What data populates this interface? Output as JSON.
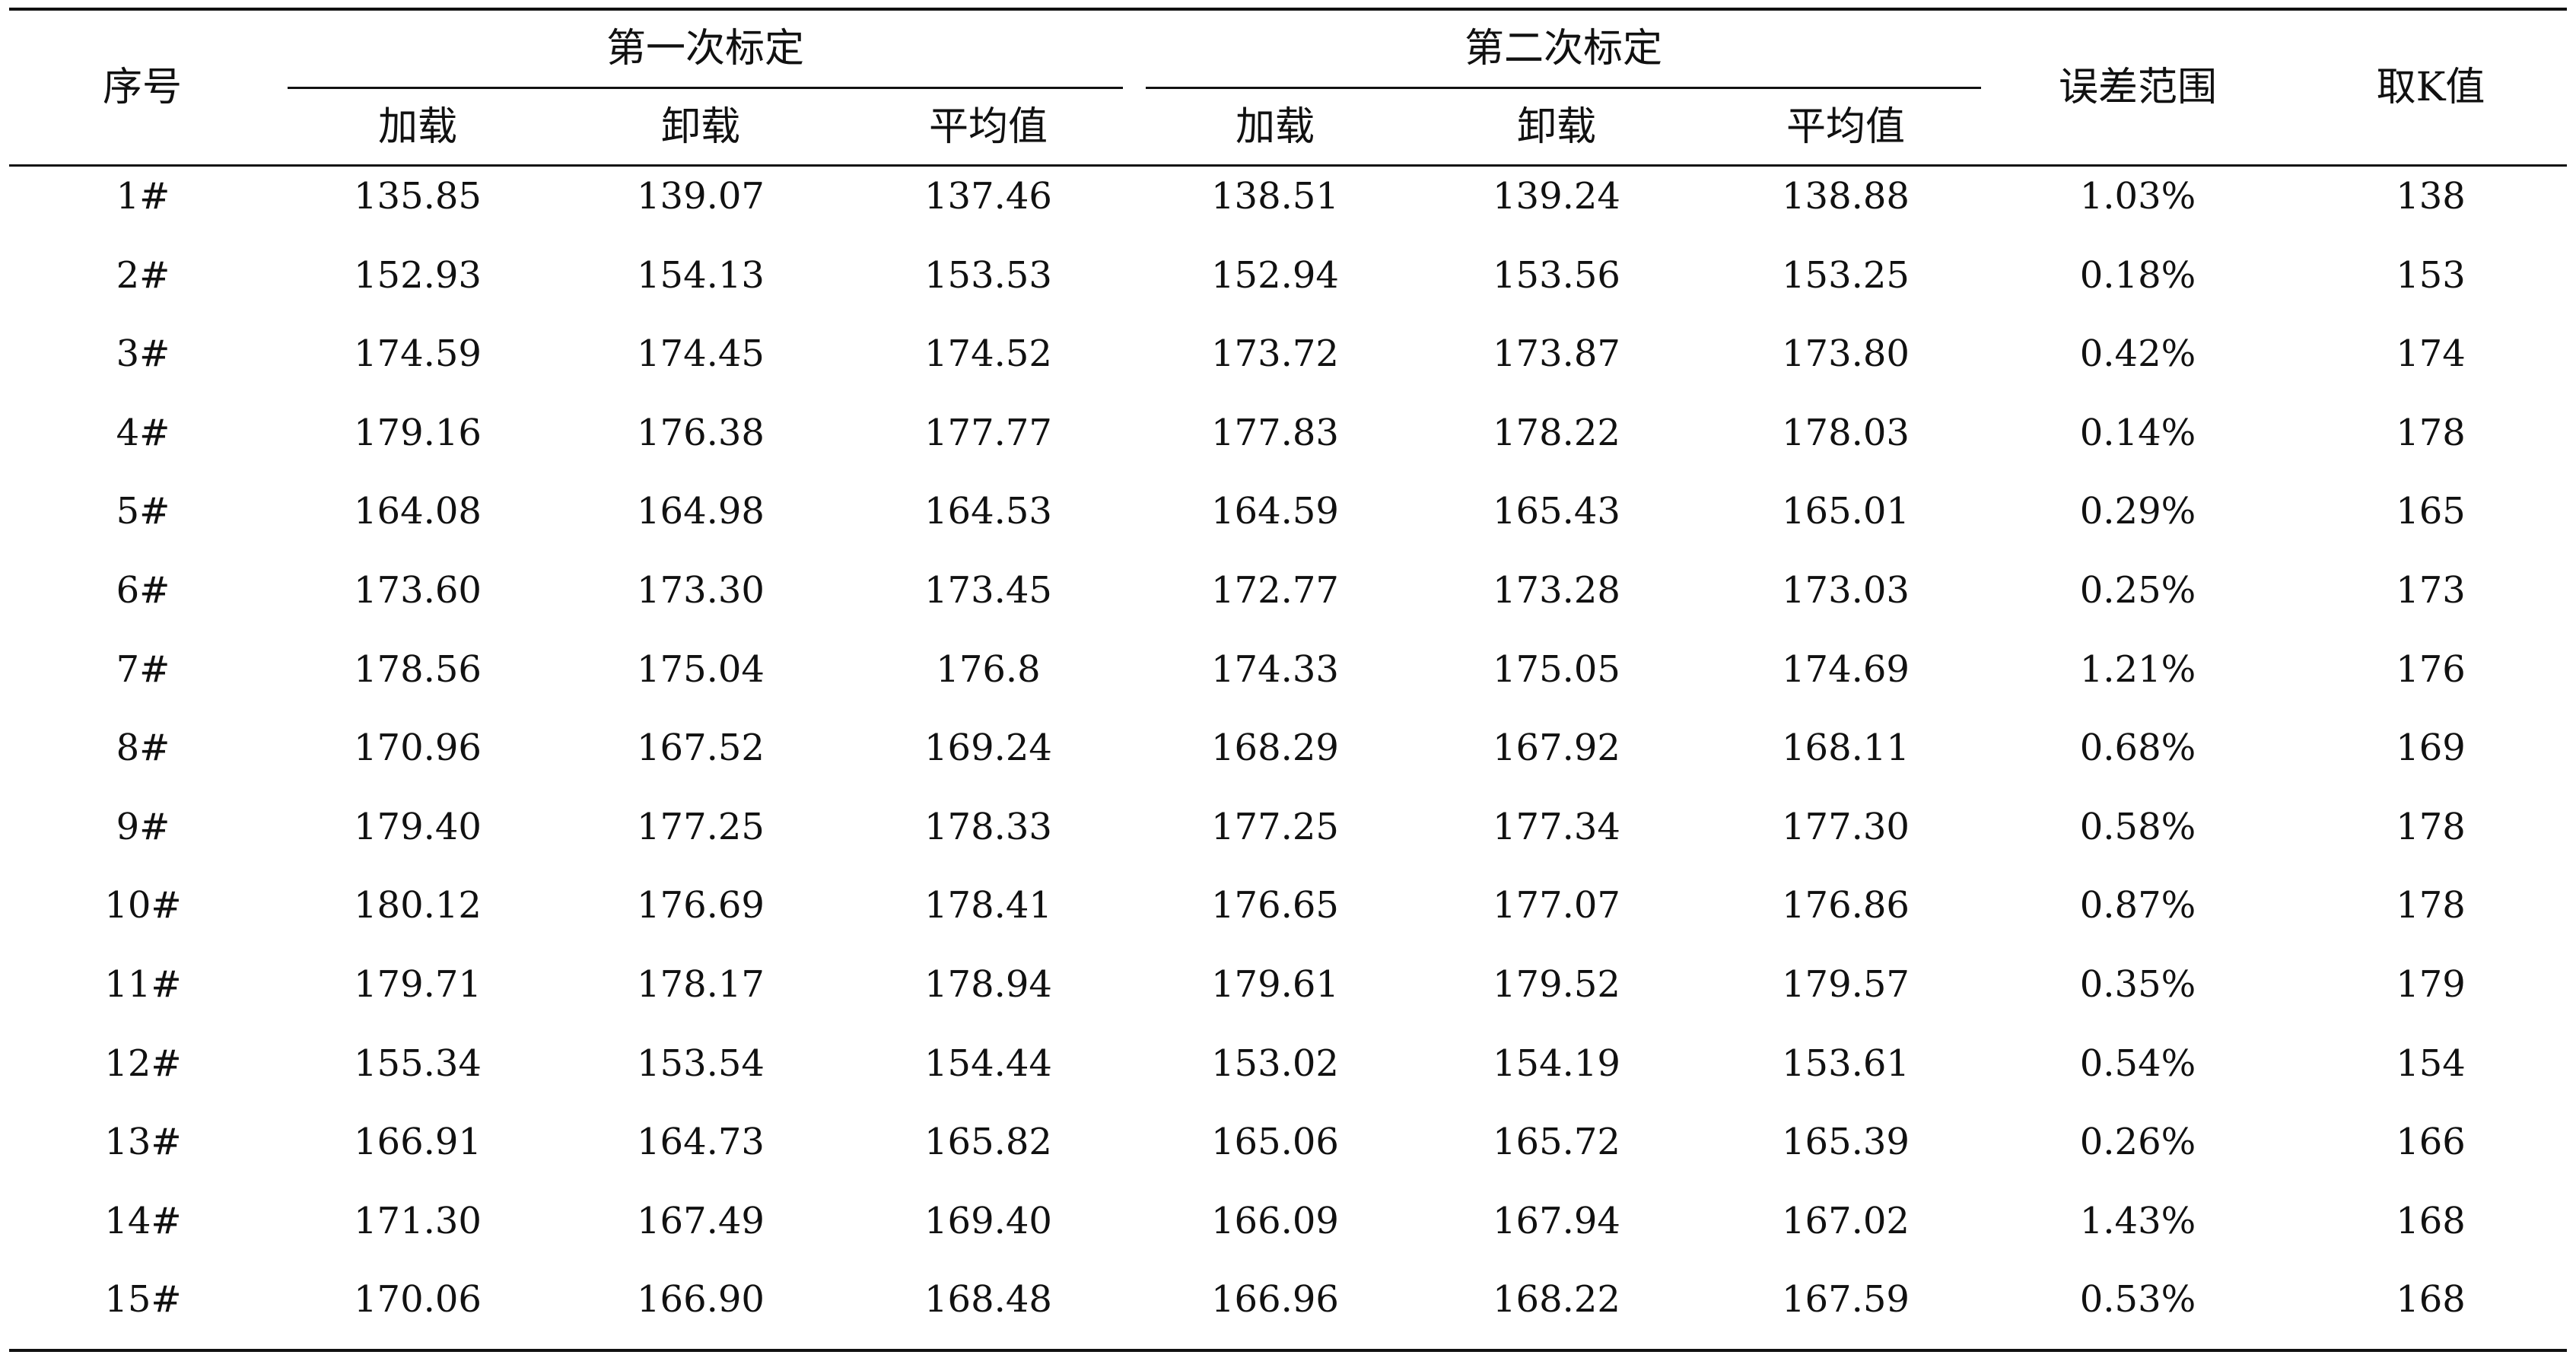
{
  "header": {
    "index_label": "序号",
    "group1_label": "第一次标定",
    "group2_label": "第二次标定",
    "sub_labels": [
      "加载",
      "卸载",
      "平均值",
      "加载",
      "卸载",
      "平均值"
    ],
    "error_label": "误差范围",
    "k_label": "取K值"
  },
  "rows": [
    [
      "1#",
      "135.85",
      "139.07",
      "137.46",
      "138.51",
      "139.24",
      "138.88",
      "1.03%",
      "138"
    ],
    [
      "2#",
      "152.93",
      "154.13",
      "153.53",
      "152.94",
      "153.56",
      "153.25",
      "0.18%",
      "153"
    ],
    [
      "3#",
      "174.59",
      "174.45",
      "174.52",
      "173.72",
      "173.87",
      "173.80",
      "0.42%",
      "174"
    ],
    [
      "4#",
      "179.16",
      "176.38",
      "177.77",
      "177.83",
      "178.22",
      "178.03",
      "0.14%",
      "178"
    ],
    [
      "5#",
      "164.08",
      "164.98",
      "164.53",
      "164.59",
      "165.43",
      "165.01",
      "0.29%",
      "165"
    ],
    [
      "6#",
      "173.60",
      "173.30",
      "173.45",
      "172.77",
      "173.28",
      "173.03",
      "0.25%",
      "173"
    ],
    [
      "7#",
      "178.56",
      "175.04",
      "176.8",
      "174.33",
      "175.05",
      "174.69",
      "1.21%",
      "176"
    ],
    [
      "8#",
      "170.96",
      "167.52",
      "169.24",
      "168.29",
      "167.92",
      "168.11",
      "0.68%",
      "169"
    ],
    [
      "9#",
      "179.40",
      "177.25",
      "178.33",
      "177.25",
      "177.34",
      "177.30",
      "0.58%",
      "178"
    ],
    [
      "10#",
      "180.12",
      "176.69",
      "178.41",
      "176.65",
      "177.07",
      "176.86",
      "0.87%",
      "178"
    ],
    [
      "11#",
      "179.71",
      "178.17",
      "178.94",
      "179.61",
      "179.52",
      "179.57",
      "0.35%",
      "179"
    ],
    [
      "12#",
      "155.34",
      "153.54",
      "154.44",
      "153.02",
      "154.19",
      "153.61",
      "0.54%",
      "154"
    ],
    [
      "13#",
      "166.91",
      "164.73",
      "165.82",
      "165.06",
      "165.72",
      "165.39",
      "0.26%",
      "166"
    ],
    [
      "14#",
      "171.30",
      "167.49",
      "169.40",
      "166.09",
      "167.94",
      "167.02",
      "1.43%",
      "168"
    ],
    [
      "15#",
      "170.06",
      "166.90",
      "168.48",
      "166.96",
      "168.22",
      "167.59",
      "0.53%",
      "168"
    ]
  ]
}
